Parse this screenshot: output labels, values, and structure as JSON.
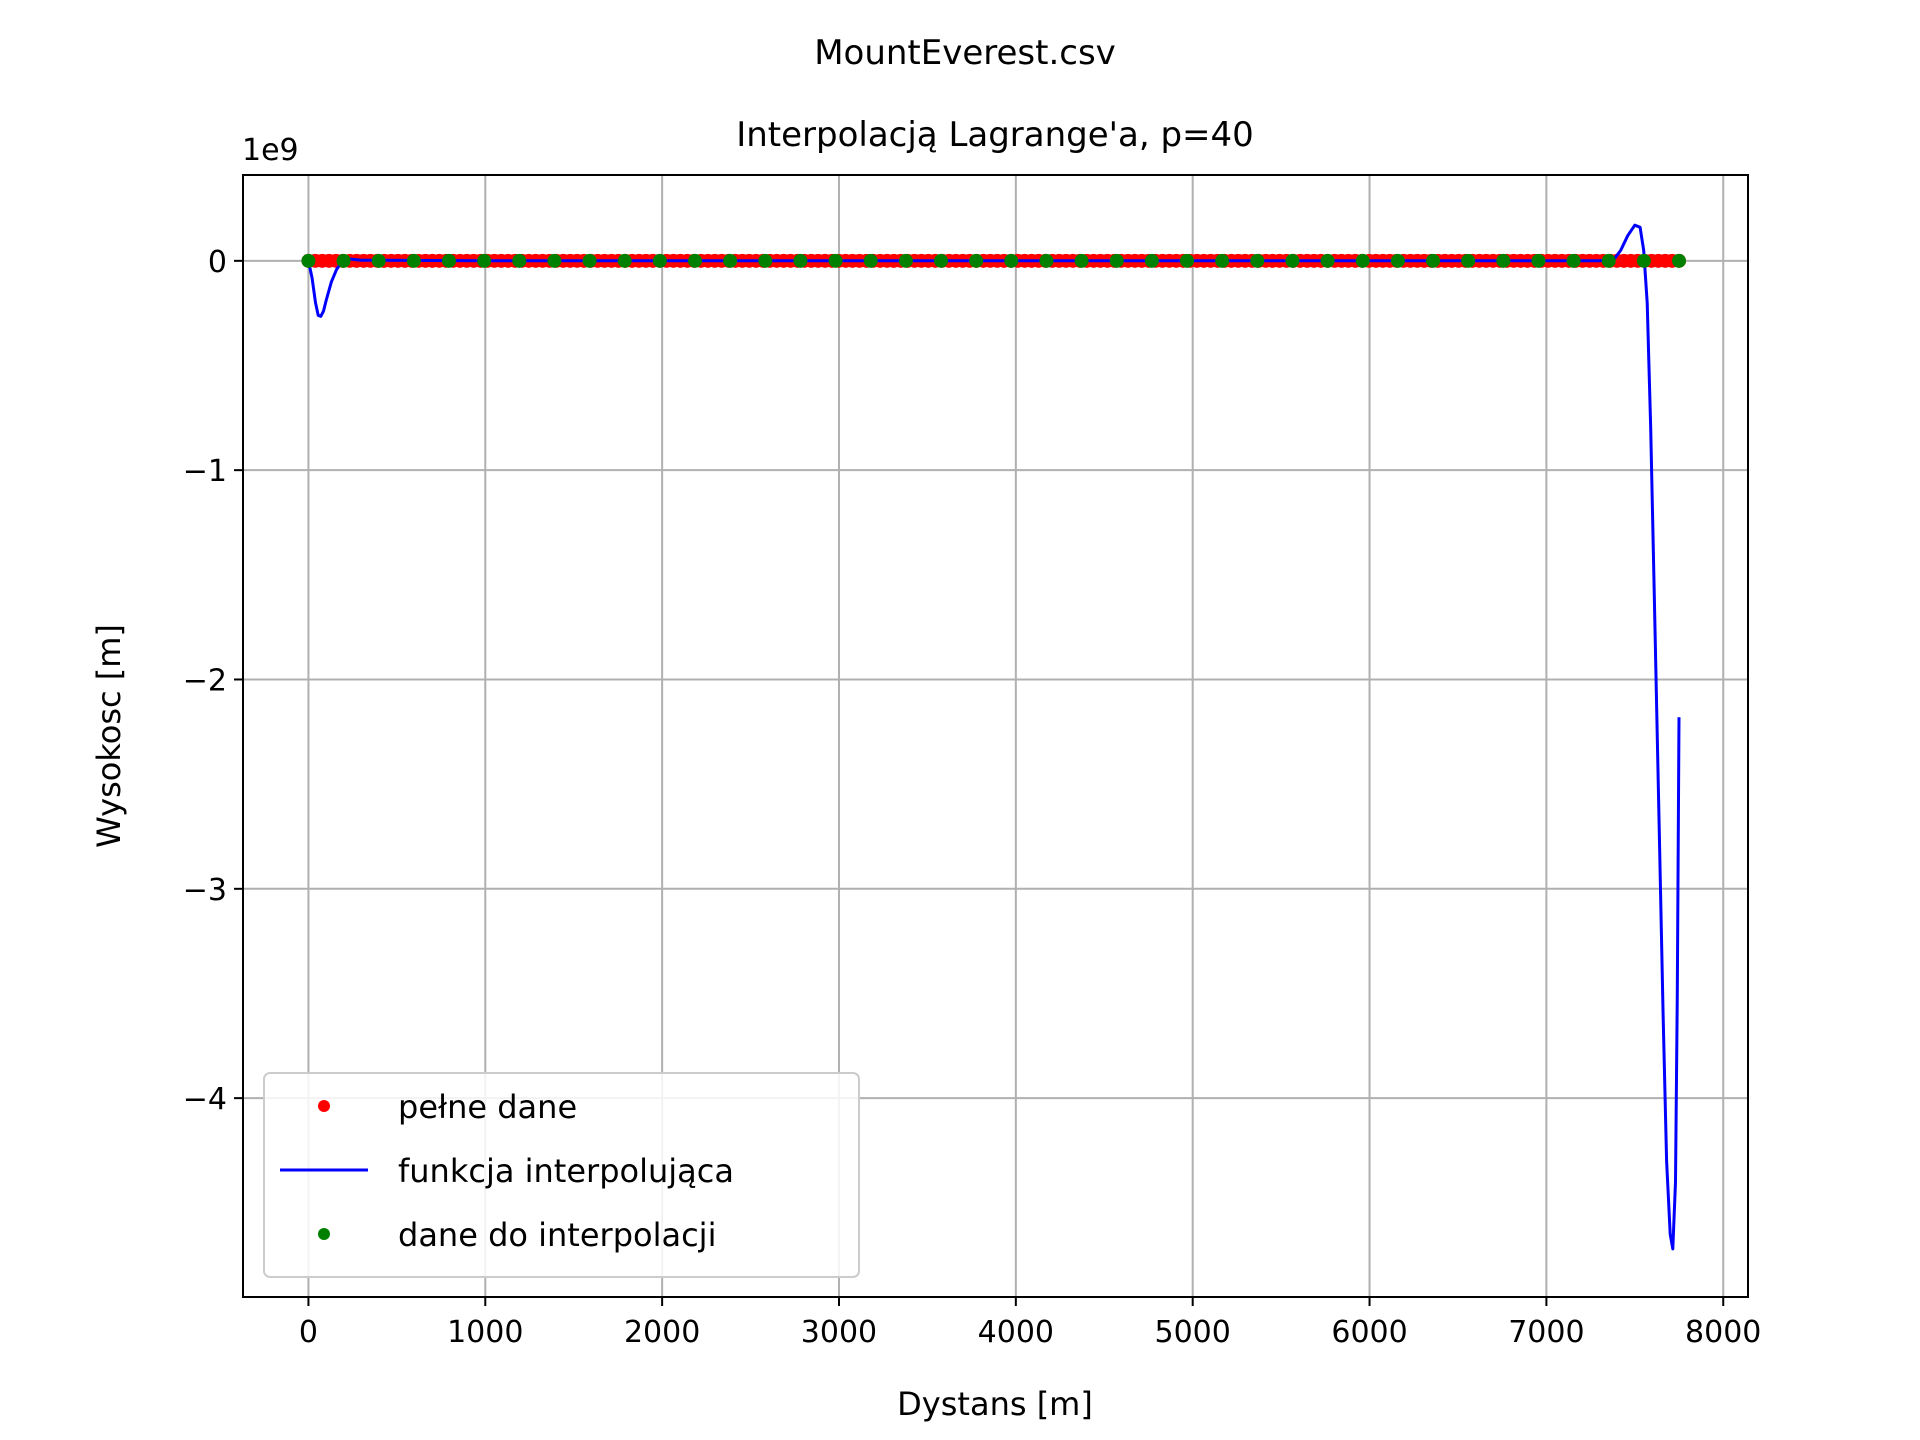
{
  "chart_data": {
    "type": "line",
    "title": "MountEverest.csv",
    "subtitle": "Interpolacją Lagrange'a, p=40",
    "xlabel": "Dystans [m]",
    "ylabel": "Wysokosc [m]",
    "y_offset_label": "1e9",
    "y_scale_factor": 1000000000,
    "xlim": [
      -370,
      8140
    ],
    "ylim": [
      -4.95,
      0.41
    ],
    "x_ticks": [
      0,
      1000,
      2000,
      3000,
      4000,
      5000,
      6000,
      7000,
      8000
    ],
    "x_tick_labels": [
      "0",
      "1000",
      "2000",
      "3000",
      "4000",
      "5000",
      "6000",
      "7000",
      "8000"
    ],
    "y_ticks": [
      0,
      -1,
      -2,
      -3,
      -4
    ],
    "y_tick_labels": [
      "0",
      "−1",
      "−2",
      "−3",
      "−4"
    ],
    "grid": true,
    "legend_position": "lower-left",
    "series": [
      {
        "name": "pełne dane",
        "kind": "points",
        "color": "#ff0000",
        "x_range": [
          0,
          7750
        ],
        "count": 200,
        "y_value": 0
      },
      {
        "name": "funkcja interpolująca",
        "kind": "line",
        "color": "#0000ff",
        "x": [
          0,
          20,
          40,
          55,
          70,
          85,
          100,
          130,
          160,
          190,
          210,
          240,
          300,
          1000,
          3000,
          5000,
          7000,
          7300,
          7380,
          7420,
          7460,
          7500,
          7530,
          7550,
          7570,
          7590,
          7610,
          7640,
          7660,
          7680,
          7700,
          7715,
          7730,
          7740,
          7750
        ],
        "y": [
          0,
          -0.08,
          -0.2,
          -0.26,
          -0.265,
          -0.24,
          -0.19,
          -0.1,
          -0.04,
          -0.005,
          0.01,
          0.008,
          0.003,
          0,
          0,
          0,
          0,
          0,
          0.005,
          0.05,
          0.12,
          0.17,
          0.16,
          0.05,
          -0.2,
          -0.8,
          -1.6,
          -2.8,
          -3.6,
          -4.3,
          -4.65,
          -4.72,
          -4.4,
          -3.5,
          -2.18
        ]
      },
      {
        "name": "dane do interpolacji",
        "kind": "points",
        "color": "#008000",
        "x_range": [
          0,
          7750
        ],
        "count": 40,
        "y_value": 0
      }
    ]
  }
}
